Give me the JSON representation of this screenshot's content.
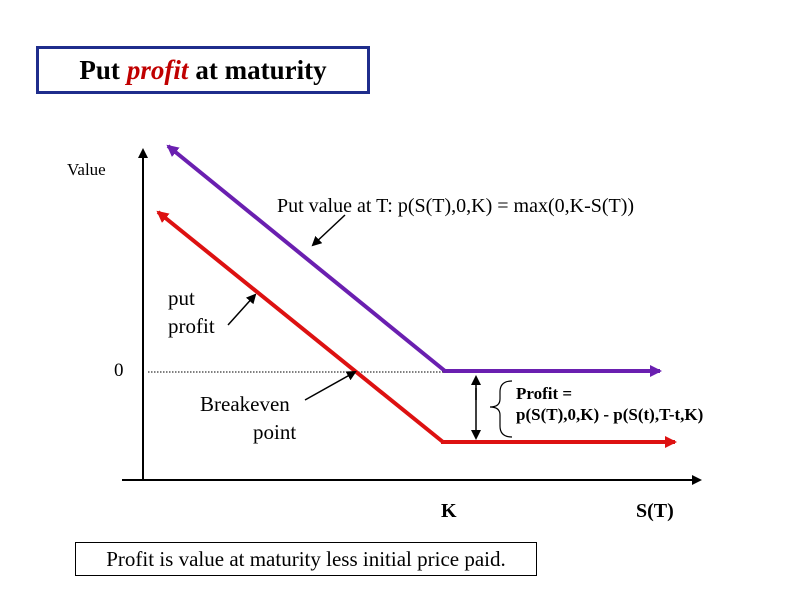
{
  "title": {
    "pre": "Put",
    "em": "profit",
    "post": "at maturity"
  },
  "labels": {
    "value_axis": "Value",
    "zero": "0",
    "put_value": "Put value at T:  p(S(T),0,K) = max(0,K-S(T))",
    "put_profit_line1": "put",
    "put_profit_line2": "profit",
    "breakeven_line1": "Breakeven",
    "breakeven_line2": "point",
    "profit_eq_line1": "Profit =",
    "profit_eq_line2": "p(S(T),0,K)  -  p(S(t),T-t,K)",
    "k": "K",
    "st": "S(T)"
  },
  "caption": "Profit is value at maturity less initial price paid.",
  "colors": {
    "put_value": "#6a1fb0",
    "put_profit": "#dd1111",
    "title_border": "#1f2d8c",
    "title_em": "#c00000"
  }
}
